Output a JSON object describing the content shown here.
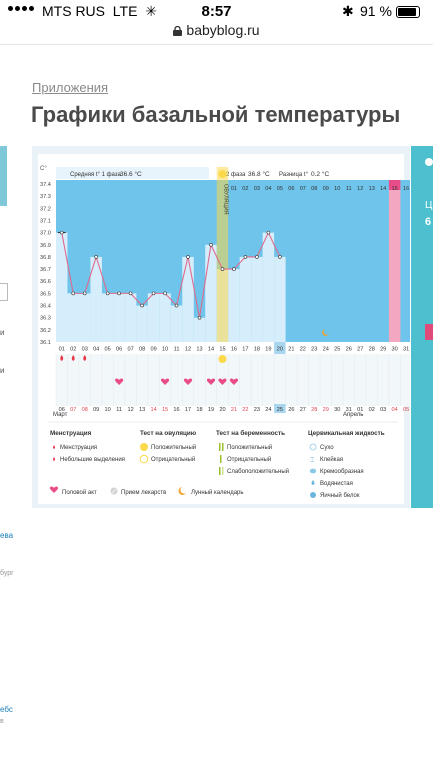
{
  "status": {
    "carrier": "MTS RUS",
    "network": "LTE",
    "time": "8:57",
    "battery": "91 %"
  },
  "url": "babyblog.ru",
  "breadcrumb": "Приложения",
  "title": "Графики базальной температуры",
  "left_snippets": [
    "и",
    "и",
    "ева",
    "бург",
    "ебс",
    "в"
  ],
  "right_panel": {
    "text_1": "Ц",
    "text_2": "6"
  },
  "chart": {
    "y_unit": "С°",
    "y_ticks": [
      "37.4",
      "37.3",
      "37.2",
      "37.1",
      "37.0",
      "36.9",
      "36.8",
      "36.7",
      "36.6",
      "36.5",
      "36.4",
      "36.3",
      "36.2",
      "36.1"
    ],
    "phase1_label": "Средняя t° 1 фаза",
    "phase1_value": "36.6 °С",
    "phase2_label": "2 фаза",
    "phase2_value": "36.8 °С",
    "diff_label": "Разница t°",
    "diff_value": "0.2 °С",
    "ovulation_label": "ОВУЛЯЦИЯ",
    "cycle_days": [
      "01",
      "02",
      "03",
      "04",
      "05",
      "06",
      "07",
      "08",
      "09",
      "10",
      "11",
      "12",
      "13",
      "14",
      "15",
      "16",
      "17",
      "18",
      "19",
      "20",
      "21",
      "22",
      "23",
      "24",
      "25",
      "26",
      "27",
      "28",
      "29",
      "30",
      "31"
    ],
    "phase2_days": [
      "01",
      "02",
      "03",
      "04",
      "05",
      "06",
      "07",
      "08",
      "09",
      "10",
      "11",
      "12",
      "13",
      "14",
      "15",
      "16"
    ],
    "dates": [
      "06",
      "07",
      "08",
      "09",
      "10",
      "11",
      "12",
      "13",
      "14",
      "15",
      "16",
      "17",
      "18",
      "19",
      "20",
      "21",
      "22",
      "23",
      "24",
      "25",
      "26",
      "27",
      "28",
      "29",
      "30",
      "31",
      "01",
      "02",
      "03",
      "04",
      "05"
    ],
    "month_1": "Март",
    "month_2": "Апрель"
  },
  "chart_data": {
    "type": "line",
    "x": [
      1,
      2,
      3,
      4,
      5,
      6,
      7,
      8,
      9,
      10,
      11,
      12,
      13,
      14,
      15,
      16,
      17,
      18,
      19,
      20
    ],
    "values": [
      37.0,
      36.5,
      36.5,
      36.8,
      36.5,
      36.5,
      36.5,
      36.4,
      36.5,
      36.5,
      36.4,
      36.8,
      36.3,
      36.9,
      36.7,
      36.7,
      36.8,
      36.8,
      37.0,
      36.8
    ],
    "ylim": [
      36.1,
      37.4
    ],
    "ovulation_day": 15,
    "menstruation_days": [
      1,
      2,
      3
    ],
    "intercourse_days": [
      6,
      10,
      12,
      14,
      15,
      16
    ],
    "moon_day": 24,
    "today_day": 20,
    "highlight_day": 30
  },
  "legend": {
    "menstruation_title": "Менструация",
    "menstruation_item_1": "Менструация",
    "menstruation_item_2": "Небольшие выделения",
    "ovulation_test_title": "Тест на овуляцию",
    "ovulation_test_positive": "Положительный",
    "ovulation_test_negative": "Отрицательный",
    "pregnancy_test_title": "Тест на беременность",
    "pregnancy_test_positive": "Положительный",
    "pregnancy_test_negative": "Отрицательный",
    "pregnancy_test_weak": "Слабоположительный",
    "cervical_title": "Цервикальная жидкость",
    "cervical_1": "Сухо",
    "cervical_2": "Клейкая",
    "cervical_3": "Кремообразная",
    "cervical_4": "Водянистая",
    "cervical_5": "Яичный белок",
    "sex_act": "Половой акт",
    "medicine": "Прием лекарств",
    "lunar": "Лунный календарь"
  },
  "colors": {
    "bg_blue": "#6ec4ea",
    "grid_light": "#d6eefc",
    "pink": "#e84d8a",
    "yellow": "#fbd94a",
    "teal": "#4cc0cf",
    "line": "#e06a8c"
  }
}
